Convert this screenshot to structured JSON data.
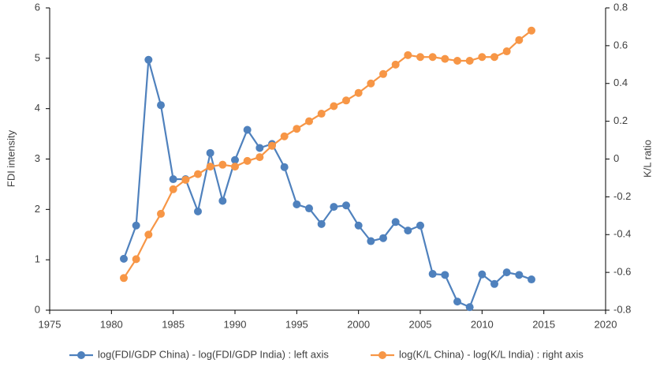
{
  "chart_data": {
    "type": "line",
    "x": [
      1981,
      1982,
      1983,
      1984,
      1985,
      1986,
      1987,
      1988,
      1989,
      1990,
      1991,
      1992,
      1993,
      1994,
      1995,
      1996,
      1997,
      1998,
      1999,
      2000,
      2001,
      2002,
      2003,
      2004,
      2005,
      2006,
      2007,
      2008,
      2009,
      2010,
      2011,
      2012,
      2013,
      2014
    ],
    "series": [
      {
        "name": "log(FDI/GDP China) - log(FDI/GDP India) : left axis",
        "color": "#4f81bd",
        "values": [
          1.02,
          1.68,
          4.97,
          4.07,
          2.6,
          2.6,
          1.96,
          3.12,
          2.17,
          2.98,
          3.58,
          3.22,
          3.3,
          2.84,
          2.1,
          2.02,
          1.71,
          2.05,
          2.08,
          1.68,
          1.37,
          1.43,
          1.75,
          1.58,
          1.68,
          0.72,
          0.7,
          0.17,
          0.06,
          0.71,
          0.52,
          0.75,
          0.7,
          0.61
        ]
      },
      {
        "name": "log(K/L China) - log(K/L India) : right axis",
        "color": "#f79646",
        "axis": "y2",
        "values": [
          -0.63,
          -0.53,
          -0.4,
          -0.29,
          -0.16,
          -0.11,
          -0.08,
          -0.04,
          -0.03,
          -0.04,
          -0.01,
          0.01,
          0.07,
          0.12,
          0.16,
          0.2,
          0.24,
          0.28,
          0.31,
          0.35,
          0.4,
          0.45,
          0.5,
          0.55,
          0.54,
          0.54,
          0.53,
          0.52,
          0.52,
          0.54,
          0.54,
          0.57,
          0.63,
          0.68
        ]
      }
    ],
    "ylabel": "FDI intensity",
    "y2label": "K/L ratio",
    "xlim": [
      1975,
      2020
    ],
    "xticks": [
      1975,
      1980,
      1985,
      1990,
      1995,
      2000,
      2005,
      2010,
      2015,
      2020
    ],
    "ylim": [
      0,
      6
    ],
    "yticks": [
      0,
      1,
      2,
      3,
      4,
      5,
      6
    ],
    "y2lim": [
      -0.8,
      0.8
    ],
    "y2ticks": [
      -0.8,
      -0.6,
      -0.4,
      -0.2,
      0,
      0.2,
      0.4,
      0.6,
      0.8
    ],
    "grid": false,
    "legend": "bottom"
  }
}
